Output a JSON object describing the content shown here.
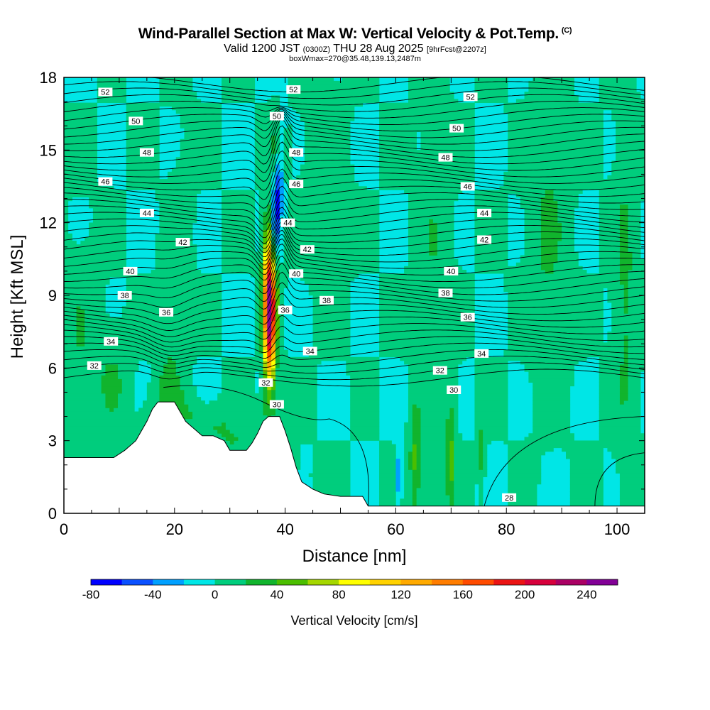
{
  "chart_data": {
    "type": "cross-section contour",
    "title": "Wind-Parallel Section at Max W: Vertical Velocity & Pot.Temp.",
    "title_mark": "(C)",
    "valid_prefix": "Valid 1200 JST",
    "valid_utc": "(0300Z)",
    "valid_date": "THU 28 Aug 2025",
    "forecast_info": "[9hrFcst@2207z]",
    "box_info": "boxWmax=270@35.48,139.13,2487m",
    "xlabel": "Distance [nm]",
    "ylabel": "Height [Kft MSL]",
    "xlim": [
      0,
      105
    ],
    "ylim": [
      0,
      18
    ],
    "x_ticks": [
      0,
      20,
      40,
      60,
      80,
      100
    ],
    "y_ticks": [
      0,
      3,
      6,
      9,
      12,
      15,
      18
    ],
    "colorbar": {
      "label": "Vertical Velocity [cm/s]",
      "range": [
        -80,
        260
      ],
      "step": 20,
      "tick_labels": [
        -80,
        -40,
        0,
        40,
        80,
        120,
        160,
        200,
        240
      ],
      "colors": [
        "#0000ff",
        "#0a50ff",
        "#00a0ff",
        "#00e6e6",
        "#00cd7d",
        "#11b42d",
        "#4bbe00",
        "#a5d700",
        "#ffff00",
        "#ffd200",
        "#ffaa00",
        "#ff7d00",
        "#ff4b00",
        "#eb1414",
        "#d7003c",
        "#aa0064",
        "#820096"
      ]
    },
    "terrain_profile": {
      "x": [
        0,
        5,
        9,
        11,
        13,
        14,
        15,
        16,
        17,
        20,
        21,
        22,
        23,
        24,
        25,
        26,
        27,
        29,
        30,
        33,
        34,
        35,
        36,
        37,
        38,
        39,
        40,
        41,
        42,
        43,
        45,
        47,
        50,
        54,
        55,
        105
      ],
      "height_kft": [
        2.3,
        2.3,
        2.3,
        2.6,
        3.0,
        3.4,
        3.8,
        4.3,
        4.6,
        4.6,
        4.2,
        3.8,
        3.6,
        3.4,
        3.2,
        3.2,
        3.2,
        3.0,
        2.6,
        2.6,
        2.9,
        3.3,
        3.8,
        4.0,
        4.0,
        4.0,
        3.4,
        2.7,
        1.9,
        1.3,
        1.0,
        0.8,
        0.7,
        0.7,
        0.3,
        0.3
      ]
    },
    "theta_isentropes": [
      {
        "label": "28",
        "label_x": 80.5,
        "label_y": 0.65
      },
      {
        "label": "30",
        "label_x": 38.5,
        "label_y": 4.5
      },
      {
        "label": "30",
        "label_x": 70.5,
        "label_y": 5.1
      },
      {
        "label": "32",
        "label_x": 5.5,
        "label_y": 6.1
      },
      {
        "label": "32",
        "label_x": 36.5,
        "label_y": 5.4
      },
      {
        "label": "32",
        "label_x": 68.0,
        "label_y": 5.9
      },
      {
        "label": "34",
        "label_x": 8.5,
        "label_y": 7.1
      },
      {
        "label": "34",
        "label_x": 44.5,
        "label_y": 6.7
      },
      {
        "label": "34",
        "label_x": 75.5,
        "label_y": 6.6
      },
      {
        "label": "36",
        "label_x": 18.5,
        "label_y": 8.3
      },
      {
        "label": "36",
        "label_x": 40.0,
        "label_y": 8.4
      },
      {
        "label": "36",
        "label_x": 73.0,
        "label_y": 8.1
      },
      {
        "label": "38",
        "label_x": 11.0,
        "label_y": 9.0
      },
      {
        "label": "38",
        "label_x": 47.5,
        "label_y": 8.8
      },
      {
        "label": "38",
        "label_x": 69.0,
        "label_y": 9.1
      },
      {
        "label": "40",
        "label_x": 12.0,
        "label_y": 10.0
      },
      {
        "label": "40",
        "label_x": 42.0,
        "label_y": 9.9
      },
      {
        "label": "40",
        "label_x": 70.0,
        "label_y": 10.0
      },
      {
        "label": "42",
        "label_x": 21.5,
        "label_y": 11.2
      },
      {
        "label": "42",
        "label_x": 44.0,
        "label_y": 10.9
      },
      {
        "label": "42",
        "label_x": 76.0,
        "label_y": 11.3
      },
      {
        "label": "44",
        "label_x": 15.0,
        "label_y": 12.4
      },
      {
        "label": "44",
        "label_x": 40.5,
        "label_y": 12.0
      },
      {
        "label": "44",
        "label_x": 76.0,
        "label_y": 12.4
      },
      {
        "label": "46",
        "label_x": 7.5,
        "label_y": 13.7
      },
      {
        "label": "46",
        "label_x": 42.0,
        "label_y": 13.6
      },
      {
        "label": "46",
        "label_x": 73.0,
        "label_y": 13.5
      },
      {
        "label": "48",
        "label_x": 15.0,
        "label_y": 14.9
      },
      {
        "label": "48",
        "label_x": 42.0,
        "label_y": 14.9
      },
      {
        "label": "48",
        "label_x": 69.0,
        "label_y": 14.7
      },
      {
        "label": "50",
        "label_x": 13.0,
        "label_y": 16.2
      },
      {
        "label": "50",
        "label_x": 38.5,
        "label_y": 16.4
      },
      {
        "label": "50",
        "label_x": 71.0,
        "label_y": 15.9
      },
      {
        "label": "52",
        "label_x": 7.5,
        "label_y": 17.4
      },
      {
        "label": "52",
        "label_x": 41.5,
        "label_y": 17.5
      },
      {
        "label": "52",
        "label_x": 73.5,
        "label_y": 17.2
      }
    ],
    "vertical_velocity_features": [
      {
        "name": "strong updraft core",
        "x": 37.2,
        "height_kft": [
          5.0,
          11.5
        ],
        "max_cm_s": 270
      },
      {
        "name": "downdraft above updraft",
        "x": 38.3,
        "height_kft": [
          9.5,
          15.5
        ],
        "min_cm_s": -60
      },
      {
        "name": "broad ascent on upwind hill",
        "x": 19.0,
        "height_kft": [
          3.0,
          13.0
        ],
        "max_cm_s": 20
      },
      {
        "name": "weak lee updraft band",
        "x": 63.5,
        "height_kft": [
          0.5,
          4.0
        ],
        "max_cm_s": 40
      },
      {
        "name": "weak updraft band",
        "x": 70.0,
        "height_kft": [
          0.5,
          4.5
        ],
        "max_cm_s": 40
      }
    ]
  }
}
